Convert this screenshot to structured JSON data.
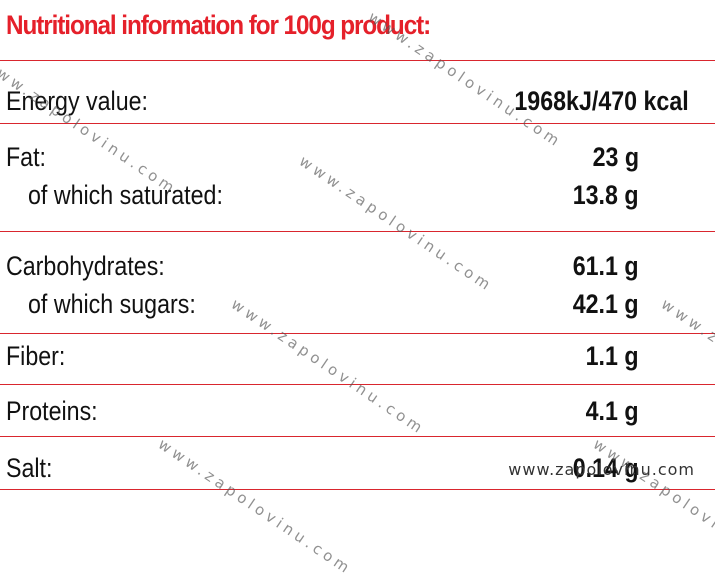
{
  "title": "Nutritional information for 100g product:",
  "accent_color": "#e5202a",
  "rows": [
    {
      "label": "Energy value:",
      "value": "1968kJ/470 kcal"
    },
    {
      "label": "Fat:",
      "value": "23 g"
    },
    {
      "label": "of which saturated:",
      "value": "13.8 g"
    },
    {
      "label": "Carbohydrates:",
      "value": "61.1 g"
    },
    {
      "label": "of which sugars:",
      "value": "42.1 g"
    },
    {
      "label": "Fiber:",
      "value": "1.1 g"
    },
    {
      "label": "Proteins:",
      "value": "4.1 g"
    },
    {
      "label": "Salt:",
      "value": "0.14 g"
    }
  ],
  "watermark": "www.zapolovinu.com"
}
